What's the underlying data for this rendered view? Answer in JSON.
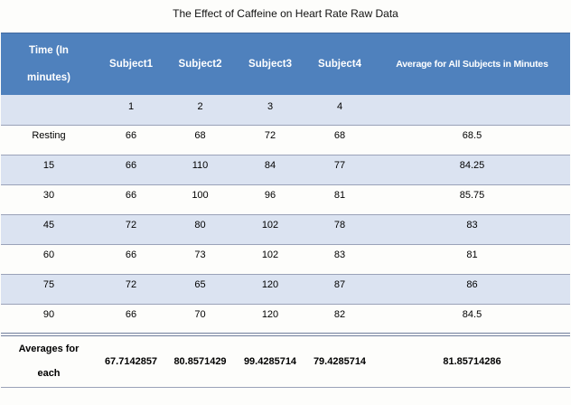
{
  "title": "The Effect of Caffeine on Heart Rate Raw Data",
  "table": {
    "columns": [
      "Time (In minutes)",
      "Subject1",
      "Subject2",
      "Subject3",
      "Subject4",
      "Average for All Subjects in Minutes"
    ],
    "subject_numbers": [
      "",
      "1",
      "2",
      "3",
      "4",
      ""
    ],
    "rows": [
      [
        "Resting",
        "66",
        "68",
        "72",
        "68",
        "68.5"
      ],
      [
        "15",
        "66",
        "110",
        "84",
        "77",
        "84.25"
      ],
      [
        "30",
        "66",
        "100",
        "96",
        "81",
        "85.75"
      ],
      [
        "45",
        "72",
        "80",
        "102",
        "78",
        "83"
      ],
      [
        "60",
        "66",
        "73",
        "102",
        "83",
        "81"
      ],
      [
        "75",
        "72",
        "65",
        "120",
        "87",
        "86"
      ],
      [
        "90",
        "66",
        "70",
        "120",
        "82",
        "84.5"
      ]
    ],
    "totals": [
      "Averages for each",
      "67.7142857",
      "80.8571429",
      "99.4285714",
      "79.4285714",
      "81.85714286"
    ]
  },
  "colors": {
    "header_bg": "#4f81bd",
    "header_text": "#ffffff",
    "band_bg": "#dbe3f1",
    "row_border": "#9aa2b8",
    "total_separator": "#6f7d9c",
    "body_text": "#000000"
  }
}
